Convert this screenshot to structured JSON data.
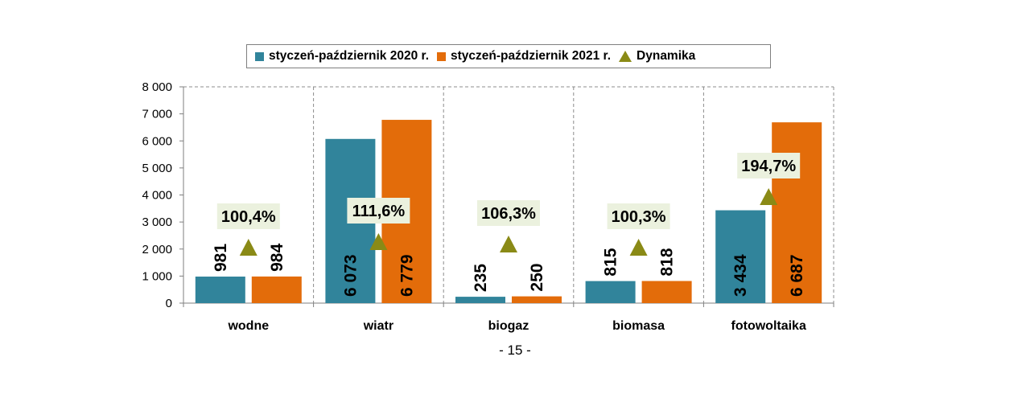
{
  "chart_data": {
    "type": "bar",
    "categories": [
      "wodne",
      "wiatr",
      "biogaz",
      "biomasa",
      "fotowoltaika"
    ],
    "series": [
      {
        "name": "styczeń-październik 2020 r.",
        "values": [
          981,
          6073,
          235,
          815,
          3434
        ],
        "labels": [
          "981",
          "6 073",
          "235",
          "815",
          "3 434"
        ],
        "color": "#31849b"
      },
      {
        "name": "styczeń-październik 2021 r.",
        "values": [
          984,
          6779,
          250,
          818,
          6687
        ],
        "labels": [
          "984",
          "6 779",
          "250",
          "818",
          "6 687"
        ],
        "color": "#e36c0a"
      }
    ],
    "dynamics": {
      "name": "Dynamika",
      "values": [
        100.4,
        111.6,
        106.3,
        100.3,
        194.7
      ],
      "labels": [
        "100,4%",
        "111,6%",
        "106,3%",
        "100,3%",
        "194,7%"
      ],
      "color": "#8a8a16"
    },
    "yticks": [
      "0",
      "1 000",
      "2 000",
      "3 000",
      "4 000",
      "5 000",
      "6 000",
      "7 000",
      "8 000"
    ],
    "ylim": [
      0,
      8000
    ],
    "legend_position": "top",
    "grid": "vertical dashed separators",
    "title": "",
    "xlabel": "",
    "ylabel": ""
  },
  "page_number": "- 15 -"
}
